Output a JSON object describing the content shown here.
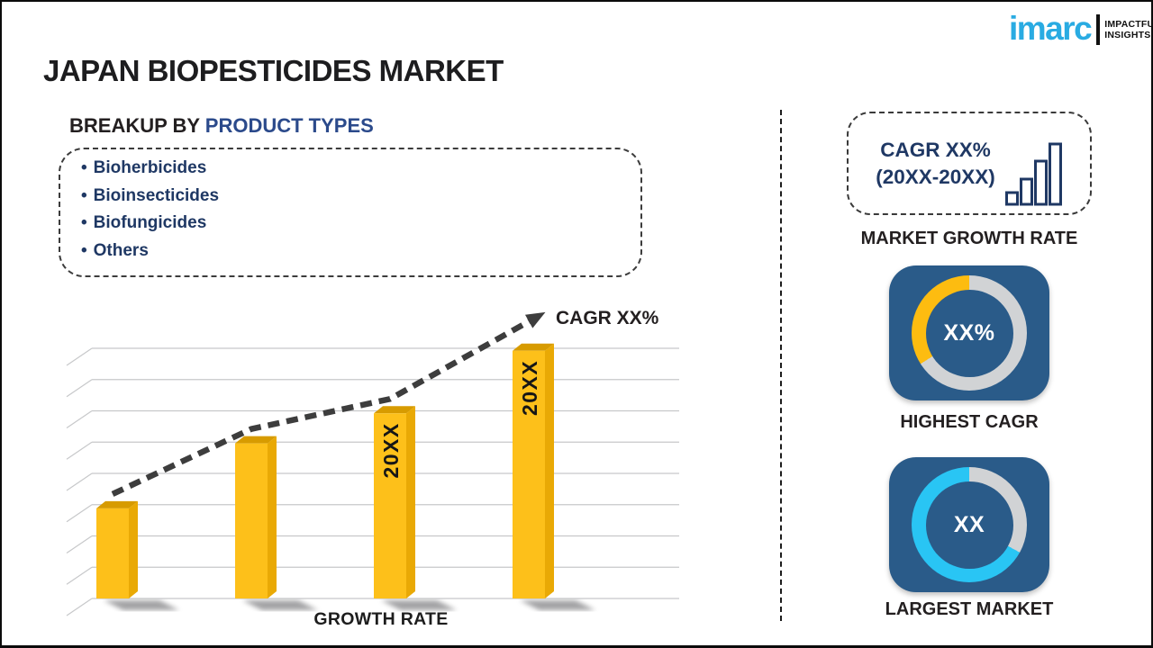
{
  "logo": {
    "brand": "imarc",
    "tagline_line1": "IMPACTFUL",
    "tagline_line2": "INSIGHTS",
    "brand_color": "#29abe2"
  },
  "title": "JAPAN BIOPESTICIDES MARKET",
  "breakup": {
    "heading_prefix": "BREAKUP BY ",
    "heading_highlight": "PRODUCT TYPES",
    "bullet_char": "•",
    "items": [
      "Bioherbicides",
      "Bioinsecticides",
      "Biofungicides",
      "Others"
    ]
  },
  "chart_data": {
    "type": "bar",
    "title": "",
    "xlabel": "GROWTH RATE",
    "ylabel": "",
    "categories": [
      "",
      "",
      "20XX",
      "20XX"
    ],
    "values": [
      36,
      62,
      74,
      99
    ],
    "values_note": "placeholder chart - relative bar heights as % of plot height",
    "ylim": [
      0,
      100
    ],
    "grid": true,
    "grid_color": "#c7c8ca",
    "bar_colors": {
      "front": "#fdc01a",
      "top": "#d79b00",
      "side": "#e9a905"
    },
    "trend_label": "CAGR XX%",
    "trend_style": "dashed-rising-arrow",
    "trend_color": "#3d3d3d"
  },
  "right_panel": {
    "growth_card": {
      "line1": "CAGR XX%",
      "line2": "(20XX-20XX)",
      "icon": "growth-bars-icon",
      "icon_color": "#1f3864",
      "caption": "MARKET GROWTH RATE"
    },
    "highest_cagr": {
      "value": "XX%",
      "caption": "HIGHEST CAGR",
      "card_color": "#2a5b89",
      "ring_color": "#fdbc10",
      "track_color": "#d1d3d5",
      "ring_pct": 34
    },
    "largest_market": {
      "value": "XX",
      "caption": "LARGEST MARKET",
      "card_color": "#2a5b89",
      "ring_color": "#29c5f4",
      "track_color": "#d1d3d5",
      "ring_pct": 67
    }
  }
}
